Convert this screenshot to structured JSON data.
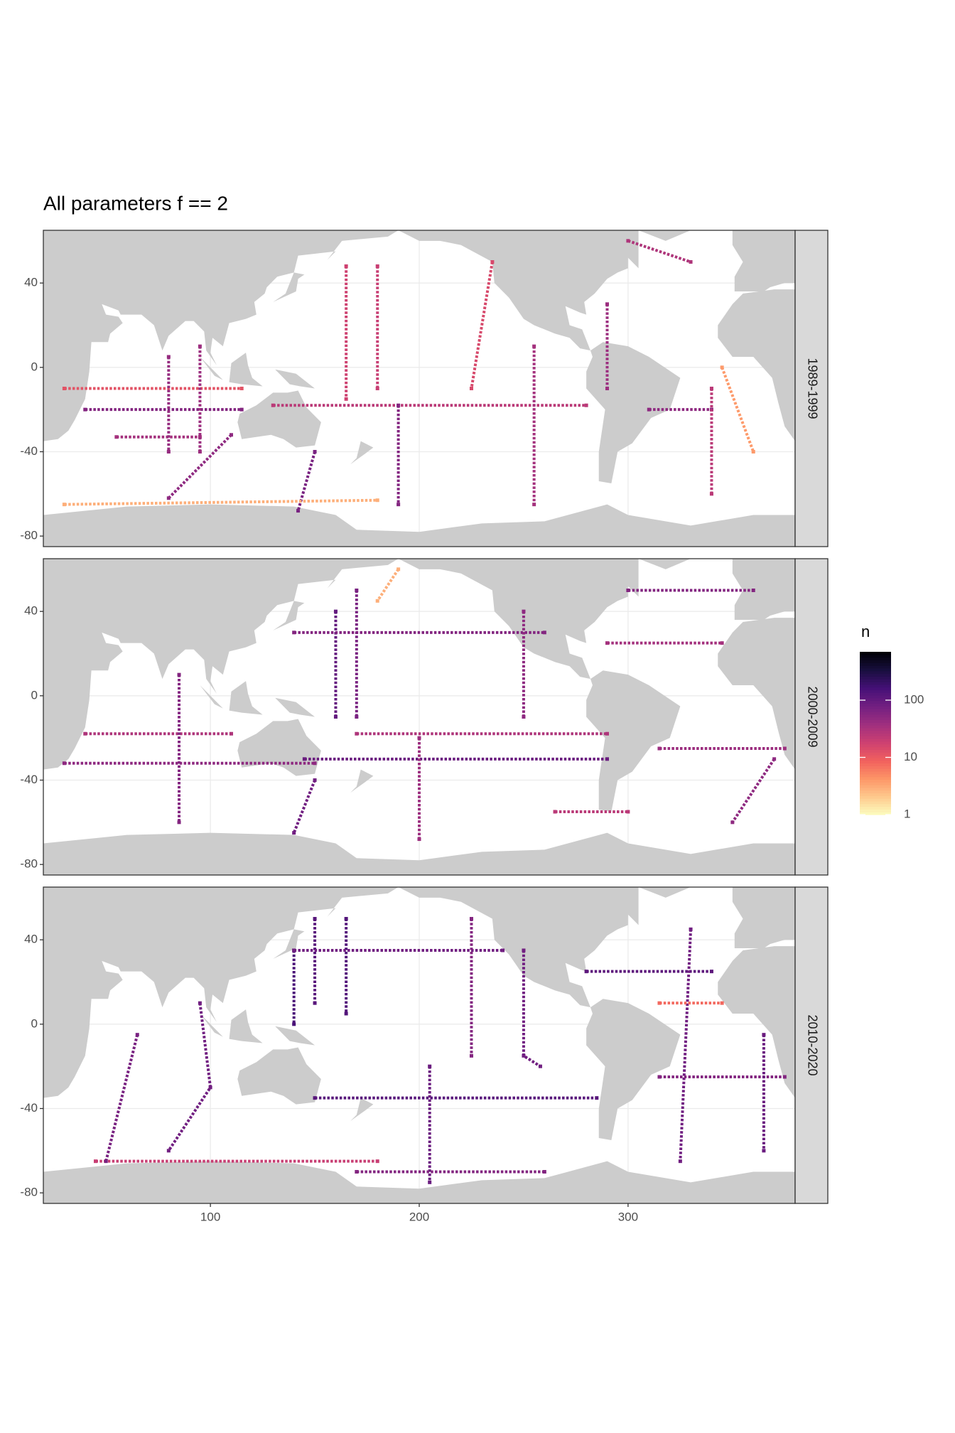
{
  "chart_data": {
    "type": "tile-map",
    "title": "All parameters f == 2",
    "legend_title": "n",
    "xlim": [
      20,
      380
    ],
    "xticks": [
      100,
      200,
      300
    ],
    "ylim": [
      -85,
      65
    ],
    "yticks": [
      -80,
      -40,
      0,
      40
    ],
    "grid": true,
    "color_scale": "log",
    "colorlim": [
      1,
      700
    ],
    "colorticks": [
      1,
      10,
      100
    ],
    "palette": [
      "#fcfdbf",
      "#fec98d",
      "#fd9567",
      "#f1605d",
      "#cd4071",
      "#9f2f7f",
      "#721f81",
      "#451077",
      "#180f3e",
      "#000004"
    ],
    "land_color": "#cccccc",
    "facets": [
      {
        "label": "1989-1999",
        "tracks": [
          {
            "lon": [
              30,
              115
            ],
            "lat": [
              -10,
              -10
            ],
            "n": 12
          },
          {
            "lon": [
              40,
              115
            ],
            "lat": [
              -20,
              -20
            ],
            "n": 60
          },
          {
            "lon": [
              55,
              95
            ],
            "lat": [
              -33,
              -33
            ],
            "n": 35
          },
          {
            "lon": [
              80,
              80
            ],
            "lat": [
              5,
              -40
            ],
            "n": 45
          },
          {
            "lon": [
              95,
              95
            ],
            "lat": [
              10,
              -40
            ],
            "n": 40
          },
          {
            "lon": [
              110,
              80
            ],
            "lat": [
              -32,
              -62
            ],
            "n": 50
          },
          {
            "lon": [
              150,
              142
            ],
            "lat": [
              -40,
              -68
            ],
            "n": 70
          },
          {
            "lon": [
              165,
              165
            ],
            "lat": [
              48,
              -15
            ],
            "n": 18
          },
          {
            "lon": [
              180,
              180
            ],
            "lat": [
              48,
              -10
            ],
            "n": 20
          },
          {
            "lon": [
              130,
              280
            ],
            "lat": [
              -18,
              -18
            ],
            "n": 25
          },
          {
            "lon": [
              190,
              190
            ],
            "lat": [
              -18,
              -65
            ],
            "n": 60
          },
          {
            "lon": [
              235,
              225
            ],
            "lat": [
              50,
              -10
            ],
            "n": 15
          },
          {
            "lon": [
              255,
              255
            ],
            "lat": [
              10,
              -65
            ],
            "n": 35
          },
          {
            "lon": [
              290,
              290
            ],
            "lat": [
              30,
              -10
            ],
            "n": 40
          },
          {
            "lon": [
              310,
              340
            ],
            "lat": [
              -20,
              -20
            ],
            "n": 50
          },
          {
            "lon": [
              340,
              340
            ],
            "lat": [
              -10,
              -60
            ],
            "n": 25
          },
          {
            "lon": [
              300,
              330
            ],
            "lat": [
              60,
              50
            ],
            "n": 30
          },
          {
            "lon": [
              30,
              180
            ],
            "lat": [
              -65,
              -63
            ],
            "n": 3
          },
          {
            "lon": [
              345,
              360
            ],
            "lat": [
              0,
              -40
            ],
            "n": 4
          }
        ]
      },
      {
        "label": "2000-2009",
        "tracks": [
          {
            "lon": [
              30,
              150
            ],
            "lat": [
              -32,
              -32
            ],
            "n": 50
          },
          {
            "lon": [
              40,
              110
            ],
            "lat": [
              -18,
              -18
            ],
            "n": 30
          },
          {
            "lon": [
              85,
              85
            ],
            "lat": [
              10,
              -60
            ],
            "n": 60
          },
          {
            "lon": [
              150,
              140
            ],
            "lat": [
              -40,
              -65
            ],
            "n": 80
          },
          {
            "lon": [
              160,
              160
            ],
            "lat": [
              40,
              -10
            ],
            "n": 100
          },
          {
            "lon": [
              170,
              170
            ],
            "lat": [
              50,
              -10
            ],
            "n": 70
          },
          {
            "lon": [
              140,
              260
            ],
            "lat": [
              30,
              30
            ],
            "n": 60
          },
          {
            "lon": [
              145,
              290
            ],
            "lat": [
              -30,
              -30
            ],
            "n": 90
          },
          {
            "lon": [
              200,
              200
            ],
            "lat": [
              -20,
              -68
            ],
            "n": 40
          },
          {
            "lon": [
              250,
              250
            ],
            "lat": [
              40,
              -10
            ],
            "n": 50
          },
          {
            "lon": [
              170,
              290
            ],
            "lat": [
              -18,
              -18
            ],
            "n": 30
          },
          {
            "lon": [
              290,
              345
            ],
            "lat": [
              25,
              25
            ],
            "n": 35
          },
          {
            "lon": [
              300,
              360
            ],
            "lat": [
              50,
              50
            ],
            "n": 60
          },
          {
            "lon": [
              315,
              375
            ],
            "lat": [
              -25,
              -25
            ],
            "n": 40
          },
          {
            "lon": [
              370,
              350
            ],
            "lat": [
              -30,
              -60
            ],
            "n": 50
          },
          {
            "lon": [
              265,
              300
            ],
            "lat": [
              -55,
              -55
            ],
            "n": 25
          },
          {
            "lon": [
              190,
              180
            ],
            "lat": [
              60,
              45
            ],
            "n": 3
          }
        ]
      },
      {
        "label": "2010-2020",
        "tracks": [
          {
            "lon": [
              45,
              180
            ],
            "lat": [
              -65,
              -65
            ],
            "n": 20
          },
          {
            "lon": [
              65,
              50
            ],
            "lat": [
              -5,
              -65
            ],
            "n": 70
          },
          {
            "lon": [
              95,
              100,
              80
            ],
            "lat": [
              10,
              -30,
              -60
            ],
            "n": 80
          },
          {
            "lon": [
              140,
              140
            ],
            "lat": [
              35,
              0
            ],
            "n": 150
          },
          {
            "lon": [
              150,
              150
            ],
            "lat": [
              50,
              10
            ],
            "n": 120
          },
          {
            "lon": [
              165,
              165
            ],
            "lat": [
              50,
              5
            ],
            "n": 130
          },
          {
            "lon": [
              140,
              240
            ],
            "lat": [
              35,
              35
            ],
            "n": 80
          },
          {
            "lon": [
              150,
              285
            ],
            "lat": [
              -35,
              -35
            ],
            "n": 120
          },
          {
            "lon": [
              205,
              205
            ],
            "lat": [
              -20,
              -75
            ],
            "n": 90
          },
          {
            "lon": [
              225,
              225
            ],
            "lat": [
              50,
              -15
            ],
            "n": 60
          },
          {
            "lon": [
              250,
              250,
              258
            ],
            "lat": [
              35,
              -15,
              -20
            ],
            "n": 80
          },
          {
            "lon": [
              280,
              340
            ],
            "lat": [
              25,
              25
            ],
            "n": 110
          },
          {
            "lon": [
              330,
              325
            ],
            "lat": [
              45,
              -65
            ],
            "n": 80
          },
          {
            "lon": [
              315,
              375
            ],
            "lat": [
              -25,
              -25
            ],
            "n": 60
          },
          {
            "lon": [
              365,
              365
            ],
            "lat": [
              -5,
              -60
            ],
            "n": 90
          },
          {
            "lon": [
              170,
              260
            ],
            "lat": [
              -70,
              -70
            ],
            "n": 60
          },
          {
            "lon": [
              315,
              345
            ],
            "lat": [
              10,
              10
            ],
            "n": 8
          }
        ]
      }
    ]
  }
}
